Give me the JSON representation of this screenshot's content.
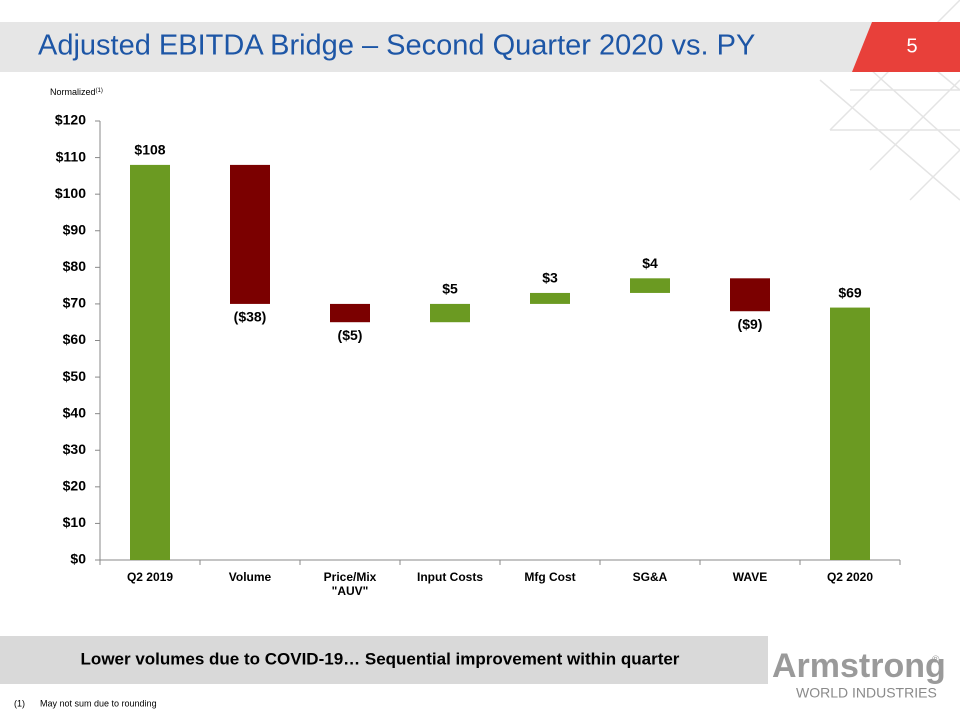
{
  "header": {
    "title": "Adjusted EBITDA Bridge – Second Quarter 2020 vs. PY",
    "page_number": "5"
  },
  "chart_data": {
    "type": "waterfall",
    "subtitle": "Normalized",
    "subtitle_note": "(1)",
    "categories": [
      "Q2 2019",
      "Volume",
      "Price/Mix \"AUV\"",
      "Input Costs",
      "Mfg Cost",
      "SG&A",
      "WAVE",
      "Q2 2020"
    ],
    "values": [
      108,
      -38,
      -5,
      5,
      3,
      4,
      -9,
      69
    ],
    "value_labels": [
      "$108",
      "($38)",
      "($5)",
      "$5",
      "$3",
      "$4",
      "($9)",
      "$69"
    ],
    "measures": [
      "absolute",
      "relative",
      "relative",
      "relative",
      "relative",
      "relative",
      "relative",
      "absolute"
    ],
    "total_color": "#6b9a22",
    "increase_color": "#6b9a22",
    "decrease_color": "#7b0000",
    "ylim": [
      0,
      120
    ],
    "yticks": [
      {
        "value": 0,
        "label": "$0"
      },
      {
        "value": 10,
        "label": "$10"
      },
      {
        "value": 20,
        "label": "$20"
      },
      {
        "value": 30,
        "label": "$30"
      },
      {
        "value": 40,
        "label": "$40"
      },
      {
        "value": 50,
        "label": "$50"
      },
      {
        "value": 60,
        "label": "$60"
      },
      {
        "value": 70,
        "label": "$70"
      },
      {
        "value": 80,
        "label": "$80"
      },
      {
        "value": 90,
        "label": "$90"
      },
      {
        "value": 100,
        "label": "$100"
      },
      {
        "value": 110,
        "label": "$110"
      },
      {
        "value": 120,
        "label": "$120"
      }
    ],
    "grid": false
  },
  "footer": {
    "banner": "Lower volumes due to COVID-19… Sequential improvement within quarter",
    "footnote_marker": "(1)",
    "footnote": "May not sum due to rounding",
    "logo_name": "Armstrong",
    "logo_mark": "®",
    "logo_tagline": "WORLD INDUSTRIES"
  }
}
